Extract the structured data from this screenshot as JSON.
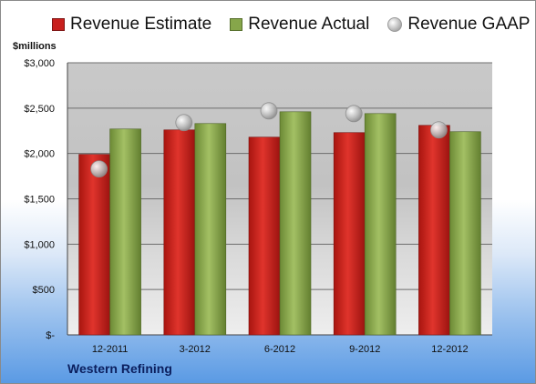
{
  "legend": {
    "estimate": "Revenue Estimate",
    "actual": "Revenue Actual",
    "gaap": "Revenue GAAP"
  },
  "units_label": "$millions",
  "company": "Western Refining",
  "colors": {
    "estimate": "#c8201e",
    "actual": "#86a64a",
    "gaap": "#c0c0c0"
  },
  "chart_data": {
    "type": "bar",
    "categories": [
      "12-2011",
      "3-2012",
      "6-2012",
      "9-2012",
      "12-2012"
    ],
    "series": [
      {
        "name": "Revenue Estimate",
        "type": "bar",
        "values": [
          1990,
          2260,
          2180,
          2230,
          2310
        ]
      },
      {
        "name": "Revenue Actual",
        "type": "bar",
        "values": [
          2270,
          2330,
          2460,
          2440,
          2240
        ]
      },
      {
        "name": "Revenue GAAP",
        "type": "scatter",
        "values": [
          1830,
          2340,
          2470,
          2440,
          2260
        ]
      }
    ],
    "ylabel": "$millions",
    "ylim": [
      0,
      3000
    ],
    "yticks": [
      0,
      500,
      1000,
      1500,
      2000,
      2500,
      3000
    ],
    "ytick_labels": [
      "$-",
      "$500",
      "$1,000",
      "$1,500",
      "$2,000",
      "$2,500",
      "$3,000"
    ],
    "grid": true,
    "legend_position": "top"
  }
}
